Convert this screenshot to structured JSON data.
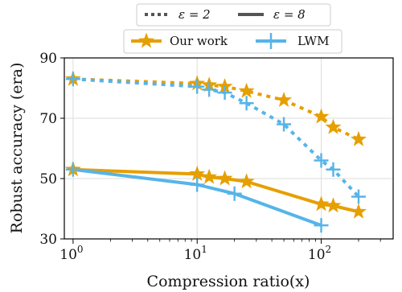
{
  "chart_data": {
    "type": "line",
    "xscale": "log",
    "xlim": [
      0.85,
      380
    ],
    "ylim": [
      30,
      90
    ],
    "yticks": [
      30,
      50,
      70,
      90
    ],
    "xticks": [
      1,
      10,
      100
    ],
    "xtick_labels": [
      {
        "base": "10",
        "exp": "0"
      },
      {
        "base": "10",
        "exp": "1"
      },
      {
        "base": "10",
        "exp": "2"
      }
    ],
    "xlabel": "Compression ratio(x)",
    "ylabel": "Robust accuracy (era)",
    "grid": true,
    "legend_style": {
      "dotted_label": "ε = 2",
      "solid_label": "ε = 8"
    },
    "legend_methods": {
      "ours": "Our work",
      "lwm": "LWM"
    },
    "colors": {
      "ours": "#E69F00",
      "lwm": "#56B4E9",
      "grid": "#dddddd",
      "style_line": "#555555"
    },
    "series": [
      {
        "name": "Our work",
        "method": "ours",
        "eps": 2,
        "dash": "dotted",
        "marker": "star",
        "x": [
          1,
          10,
          12.5,
          16.7,
          25,
          50,
          100,
          125,
          200
        ],
        "y": [
          83,
          81.5,
          81,
          80.5,
          79,
          76,
          70.5,
          67,
          63
        ]
      },
      {
        "name": "LWM",
        "method": "lwm",
        "eps": 2,
        "dash": "dotted",
        "marker": "plus",
        "x": [
          1,
          10,
          12.5,
          16.7,
          25,
          50,
          100,
          125,
          200
        ],
        "y": [
          83,
          80.5,
          79.5,
          78.5,
          75,
          68,
          56,
          53,
          44
        ]
      },
      {
        "name": "Our work",
        "method": "ours",
        "eps": 8,
        "dash": "solid",
        "marker": "star",
        "x": [
          1,
          10,
          12.5,
          16.7,
          25,
          100,
          125,
          200
        ],
        "y": [
          53,
          51.5,
          50.5,
          50,
          49,
          41.5,
          41,
          39
        ]
      },
      {
        "name": "LWM",
        "method": "lwm",
        "eps": 8,
        "dash": "solid",
        "marker": "plus",
        "x": [
          1,
          10,
          20,
          100
        ],
        "y": [
          53,
          48,
          45,
          34.5
        ]
      }
    ]
  }
}
